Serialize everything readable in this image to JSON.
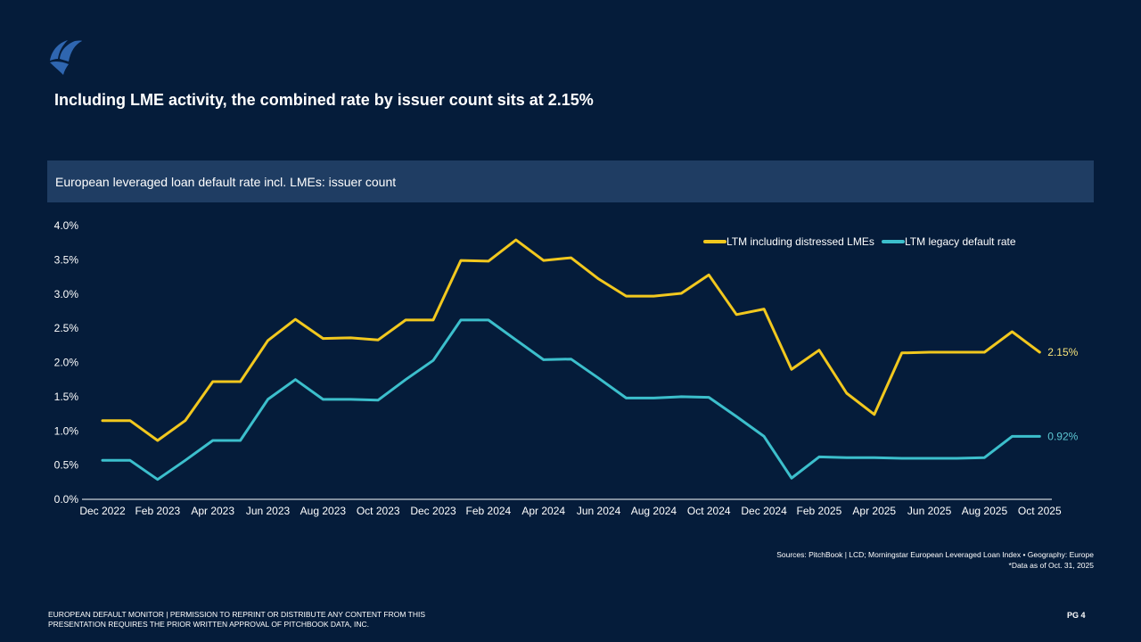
{
  "brand": {
    "logo": "pitchbook-sail-logo-icon",
    "logo_color": "#2f66b0"
  },
  "headline": "Including LME activity, the combined rate by issuer count sits at 2.15%",
  "chart_band_title": "European leveraged loan default rate incl. LMEs: issuer count",
  "colors": {
    "background": "#051c3a",
    "band": "#1f3d63",
    "yellow": "#f2c81e",
    "cyan": "#3cbfcc"
  },
  "chart_data": {
    "type": "line",
    "title": "European leveraged loan default rate incl. LMEs: issuer count",
    "xlabel": "",
    "ylabel": "",
    "ylim": [
      0,
      4.0
    ],
    "yticks": [
      "0.0%",
      "0.5%",
      "1.0%",
      "1.5%",
      "2.0%",
      "2.5%",
      "3.0%",
      "3.5%",
      "4.0%"
    ],
    "grid": false,
    "legend_position": "top-right",
    "x": [
      "Dec 2022",
      "Jan 2023",
      "Feb 2023",
      "Mar 2023",
      "Apr 2023",
      "May 2023",
      "Jun 2023",
      "Jul 2023",
      "Aug 2023",
      "Sep 2023",
      "Oct 2023",
      "Nov 2023",
      "Dec 2023",
      "Jan 2024",
      "Feb 2024",
      "Mar 2024",
      "Apr 2024",
      "May 2024",
      "Jun 2024",
      "Jul 2024",
      "Aug 2024",
      "Sep 2024",
      "Oct 2024",
      "Nov 2024",
      "Dec 2024",
      "Jan 2025",
      "Feb 2025",
      "Mar 2025",
      "Apr 2025",
      "May 2025",
      "Jun 2025",
      "Jul 2025",
      "Aug 2025",
      "Sep 2025",
      "Oct 2025"
    ],
    "xtick_labels": [
      "Dec 2022",
      "Feb 2023",
      "Apr 2023",
      "Jun 2023",
      "Aug 2023",
      "Oct 2023",
      "Dec 2023",
      "Feb 2024",
      "Apr 2024",
      "Jun 2024",
      "Aug 2024",
      "Oct 2024",
      "Dec 2024",
      "Feb 2025",
      "Apr 2025",
      "Jun 2025",
      "Aug 2025",
      "Oct 2025"
    ],
    "series": [
      {
        "name": "LTM including distressed LMEs",
        "color": "#f2c81e",
        "end_label": "2.15%",
        "values": [
          1.15,
          1.15,
          0.86,
          1.15,
          1.72,
          1.72,
          2.32,
          2.63,
          2.35,
          2.36,
          2.33,
          2.62,
          2.62,
          3.49,
          3.48,
          3.79,
          3.49,
          3.53,
          3.22,
          2.97,
          2.97,
          3.01,
          3.28,
          2.7,
          2.78,
          1.9,
          2.18,
          1.55,
          1.24,
          2.14,
          2.15,
          2.15,
          2.15,
          2.45,
          2.15
        ]
      },
      {
        "name": "LTM legacy default rate",
        "color": "#3cbfcc",
        "end_label": "0.92%",
        "values": [
          0.57,
          0.57,
          0.29,
          0.57,
          0.86,
          0.86,
          1.46,
          1.75,
          1.46,
          1.46,
          1.45,
          1.75,
          2.03,
          2.62,
          2.62,
          2.33,
          2.04,
          2.05,
          1.77,
          1.48,
          1.48,
          1.5,
          1.49,
          1.21,
          0.92,
          0.31,
          0.62,
          0.61,
          0.61,
          0.6,
          0.6,
          0.6,
          0.61,
          0.92,
          0.92
        ]
      }
    ]
  },
  "sources": {
    "line1": "Sources: PitchBook | LCD; Morningstar European Leveraged Loan Index • Geography: Europe",
    "line2": "*Data as of  Oct. 31, 2025"
  },
  "footer": {
    "line1": "European Default Monitor | Permission to reprint or distribute any content  from this",
    "line2": "presentation requires the prior written approval of PitchBook Data, Inc.",
    "page": "PG 4"
  }
}
